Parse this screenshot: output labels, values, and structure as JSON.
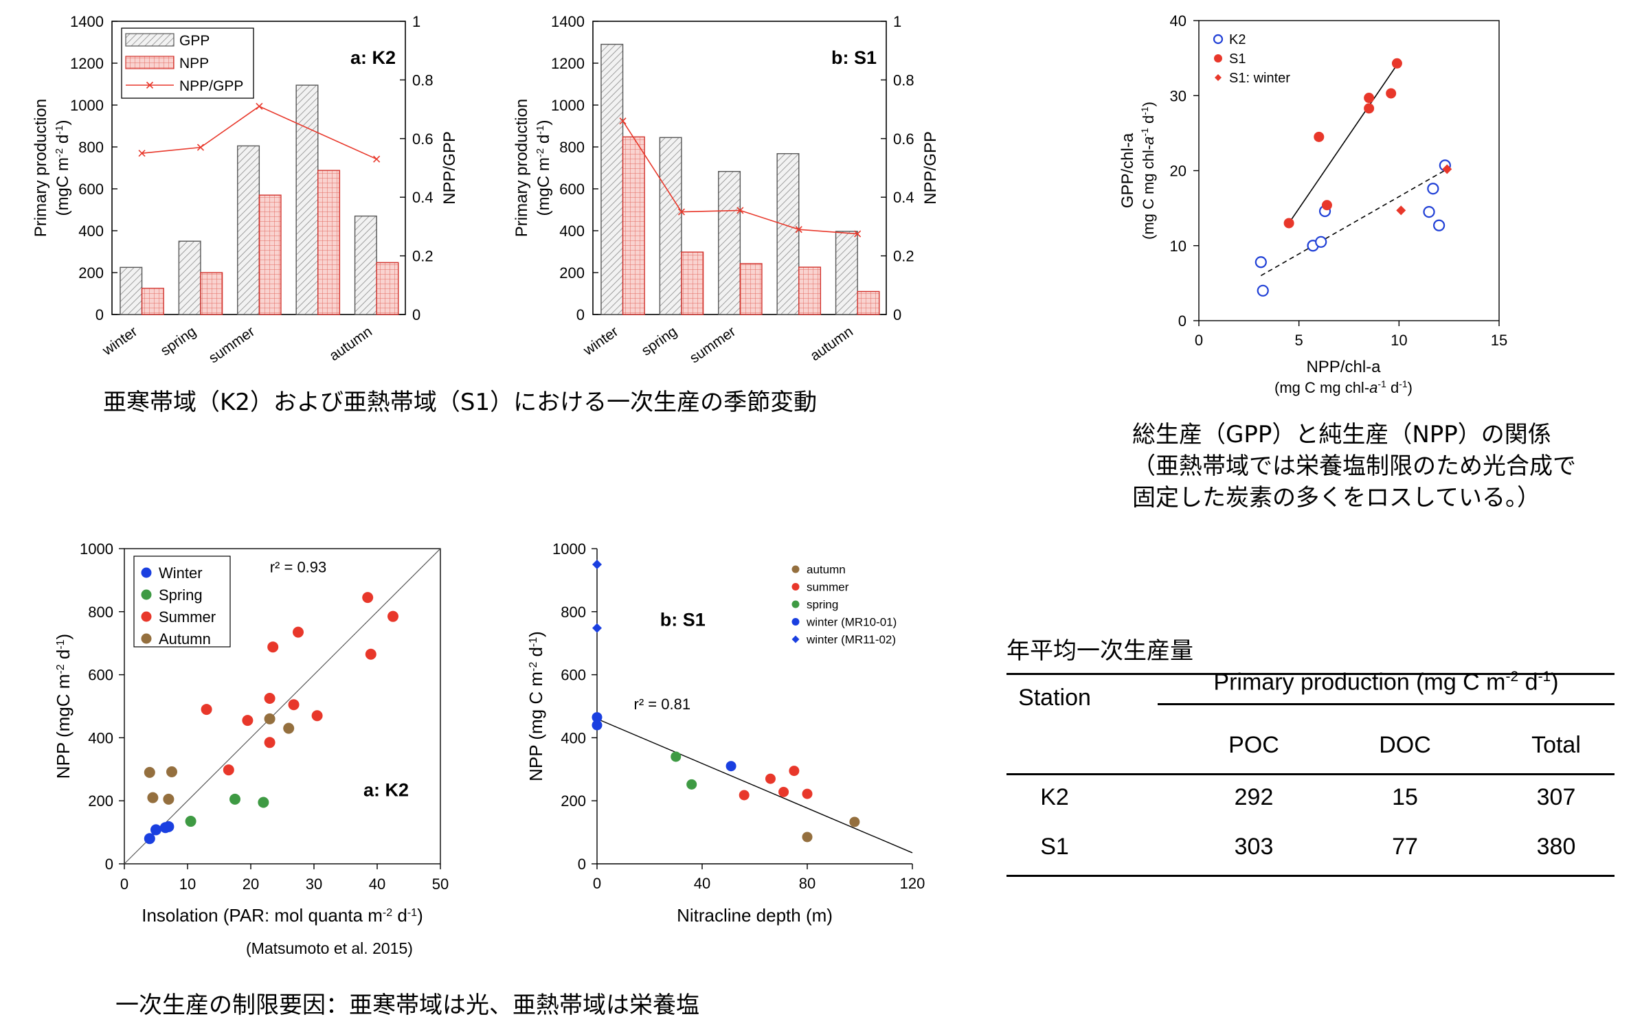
{
  "chart_data": [
    {
      "type": "bar",
      "panel": "a: K2",
      "categories": [
        "winter",
        "spring",
        "summer",
        "",
        "autumn"
      ],
      "series": [
        {
          "name": "GPP",
          "values": [
            225,
            350,
            805,
            1095,
            470
          ]
        },
        {
          "name": "NPP",
          "values": [
            125,
            200,
            570,
            688,
            248
          ]
        },
        {
          "name": "NPP/GPP",
          "axis": "right",
          "values": [
            0.55,
            0.57,
            0.71,
            null,
            0.53
          ]
        }
      ],
      "ylabel": [
        "Primary production",
        "(mgC m",
        "-2",
        " d",
        "-1",
        ")"
      ],
      "y2label": "NPP/GPP",
      "ylim": [
        0,
        1400
      ],
      "yticks": [
        0,
        200,
        400,
        600,
        800,
        1000,
        1200,
        1400
      ],
      "y2lim": [
        0,
        1
      ],
      "y2ticks": [
        "0",
        "0.2",
        "0.4",
        "0.6",
        "0.8",
        "1"
      ],
      "legend": "top-left"
    },
    {
      "type": "bar",
      "panel": "b: S1",
      "categories": [
        "winter",
        "spring",
        "summer",
        "",
        "autumn"
      ],
      "series": [
        {
          "name": "GPP",
          "values": [
            1290,
            845,
            683,
            768,
            397
          ]
        },
        {
          "name": "NPP",
          "values": [
            848,
            298,
            243,
            226,
            110
          ]
        },
        {
          "name": "NPP/GPP",
          "axis": "right",
          "values": [
            0.66,
            0.35,
            0.355,
            0.29,
            0.275
          ]
        }
      ],
      "ylabel": [
        "Primary production",
        "(mgC m",
        "-2",
        " d",
        "-1",
        ")"
      ],
      "y2label": "NPP/GPP",
      "ylim": [
        0,
        1400
      ],
      "yticks": [
        0,
        200,
        400,
        600,
        800,
        1000,
        1200,
        1400
      ],
      "y2lim": [
        0,
        1
      ],
      "y2ticks": [
        "0",
        "0.2",
        "0.4",
        "0.6",
        "0.8",
        "1"
      ]
    },
    {
      "type": "scatter",
      "xlabel": "NPP/chl-a",
      "xlabel_unit": [
        "(mg C mg chl-",
        "a",
        "-1",
        " d",
        "-1",
        ")"
      ],
      "ylabel": "GPP/chl-a",
      "ylabel_unit": [
        "(mg C mg chl-",
        "a",
        "-1",
        " d",
        "-1",
        ")"
      ],
      "xlim": [
        0,
        15
      ],
      "ylim": [
        0,
        40
      ],
      "xticks": [
        0,
        5,
        10,
        15
      ],
      "yticks": [
        0,
        10,
        20,
        30,
        40
      ],
      "legend": "top-left",
      "series": [
        {
          "name": "K2",
          "marker": "open-circle",
          "color": "#1f3fd6",
          "points": [
            [
              3.1,
              7.8
            ],
            [
              3.2,
              4.0
            ],
            [
              5.7,
              10.0
            ],
            [
              6.1,
              10.5
            ],
            [
              6.3,
              14.6
            ],
            [
              11.5,
              14.5
            ],
            [
              11.7,
              17.6
            ],
            [
              12.0,
              12.7
            ],
            [
              12.3,
              20.7
            ]
          ]
        },
        {
          "name": "S1",
          "marker": "filled-circle",
          "color": "#e8372a",
          "points": [
            [
              4.5,
              13.0
            ],
            [
              6.0,
              24.5
            ],
            [
              6.4,
              15.4
            ],
            [
              8.5,
              29.7
            ],
            [
              8.5,
              28.3
            ],
            [
              9.6,
              30.3
            ],
            [
              9.9,
              34.3
            ]
          ]
        },
        {
          "name": "S1: winter",
          "marker": "filled-diamond",
          "color": "#e8372a",
          "points": [
            [
              10.1,
              14.7
            ],
            [
              12.4,
              20.2
            ]
          ]
        }
      ],
      "fit_lines": [
        {
          "series": "S1",
          "style": "solid",
          "from": [
            4.5,
            13.0
          ],
          "to": [
            10.0,
            34.5
          ]
        },
        {
          "series": "K2",
          "style": "dashed",
          "from": [
            3.1,
            6.0
          ],
          "to": [
            12.4,
            20.2
          ]
        }
      ]
    },
    {
      "type": "scatter",
      "panel": "a: K2",
      "xlabel": [
        "Insolation (PAR: mol quanta m",
        "-2",
        " d",
        "-1",
        ")"
      ],
      "ylabel": [
        "NPP (mgC m",
        "-2",
        " d",
        "-1",
        ")"
      ],
      "xlim": [
        0,
        50
      ],
      "ylim": [
        0,
        1000
      ],
      "xticks": [
        0,
        10,
        20,
        30,
        40,
        50
      ],
      "yticks": [
        0,
        200,
        400,
        600,
        800,
        1000
      ],
      "annotation": "r² = 0.93",
      "legend": "top-left",
      "series": [
        {
          "name": "Winter",
          "color": "#1a3fe0",
          "points": [
            [
              4,
              80
            ],
            [
              5,
              108
            ],
            [
              6.5,
              115
            ],
            [
              7,
              118
            ]
          ]
        },
        {
          "name": "Spring",
          "color": "#3e9a43",
          "points": [
            [
              10.5,
              135
            ],
            [
              17.5,
              205
            ],
            [
              22,
              195
            ]
          ]
        },
        {
          "name": "Summer",
          "color": "#e8372a",
          "points": [
            [
              13,
              490
            ],
            [
              16.5,
              298
            ],
            [
              19.5,
              455
            ],
            [
              23,
              385
            ],
            [
              23,
              525
            ],
            [
              23.5,
              688
            ],
            [
              26.8,
              505
            ],
            [
              27.5,
              735
            ],
            [
              30.5,
              470
            ],
            [
              38.5,
              845
            ],
            [
              39,
              665
            ],
            [
              42.5,
              785
            ]
          ]
        },
        {
          "name": "Autumn",
          "color": "#946f3e",
          "points": [
            [
              4,
              290
            ],
            [
              4.5,
              210
            ],
            [
              7,
              205
            ],
            [
              7.5,
              292
            ],
            [
              23,
              460
            ],
            [
              26,
              430
            ]
          ]
        }
      ],
      "fit_line": {
        "from": [
          0,
          0
        ],
        "to": [
          50,
          1000
        ]
      }
    },
    {
      "type": "scatter",
      "panel": "b: S1",
      "xlabel": "Nitracline depth (m)",
      "ylabel": [
        "NPP (mg C m",
        "-2",
        " d",
        "-1",
        ")"
      ],
      "xlim": [
        0,
        120
      ],
      "ylim": [
        0,
        1000
      ],
      "xticks": [
        0,
        40,
        80,
        120
      ],
      "yticks": [
        0,
        200,
        400,
        600,
        800,
        1000
      ],
      "annotation": "r² = 0.81",
      "legend": "top-right",
      "series": [
        {
          "name": "autumn",
          "color": "#946f3e",
          "marker": "circle",
          "points": [
            [
              80,
              85
            ],
            [
              98,
              133
            ]
          ]
        },
        {
          "name": "summer",
          "color": "#e8372a",
          "marker": "circle",
          "points": [
            [
              56,
              218
            ],
            [
              66,
              270
            ],
            [
              71,
              228
            ],
            [
              75,
              295
            ],
            [
              80,
              222
            ]
          ]
        },
        {
          "name": "spring",
          "color": "#3e9a43",
          "marker": "circle",
          "points": [
            [
              30,
              340
            ],
            [
              36,
              252
            ]
          ]
        },
        {
          "name": "winter (MR10-01)",
          "color": "#1a3fe0",
          "marker": "circle",
          "points": [
            [
              0,
              440
            ],
            [
              0,
              465
            ],
            [
              51,
              310
            ]
          ]
        },
        {
          "name": "winter (MR11-02)",
          "color": "#1a3fe0",
          "marker": "diamond",
          "points": [
            [
              0,
              950
            ],
            [
              0,
              748
            ]
          ]
        }
      ],
      "fit_line": {
        "from": [
          0,
          460
        ],
        "to": [
          120,
          35
        ]
      }
    }
  ],
  "captions": {
    "seasonal": "亜寒帯域（K2）および亜熱帯域（S1）における一次生産の季節変動",
    "relation_lines": [
      "総生産（GPP）と純生産（NPP）の関係",
      "（亜熱帯域では栄養塩制限のため光合成で",
      "固定した炭素の多くをロスしている。）"
    ],
    "citation": "(Matsumoto et al. 2015)",
    "limiting": "一次生産の制限要因：亜寒帯域は光、亜熱帯域は栄養塩"
  },
  "table": {
    "title": "年平均一次生産量",
    "station_label": "Station",
    "group_header": [
      "Primary production (mg C m",
      "-2",
      " d",
      "-1",
      ")"
    ],
    "columns": [
      "POC",
      "DOC",
      "Total"
    ],
    "rows": [
      {
        "station": "K2",
        "values": [
          "292",
          "15",
          "307"
        ]
      },
      {
        "station": "S1",
        "values": [
          "303",
          "77",
          "380"
        ]
      }
    ]
  },
  "colors": {
    "npp_fill": "#f6c9c6",
    "npp_stroke": "#d2312b",
    "ratio_line": "#e8372a",
    "gpp_stroke": "#555555",
    "k2_blue": "#1f3fd6",
    "s1_red": "#e8372a"
  }
}
